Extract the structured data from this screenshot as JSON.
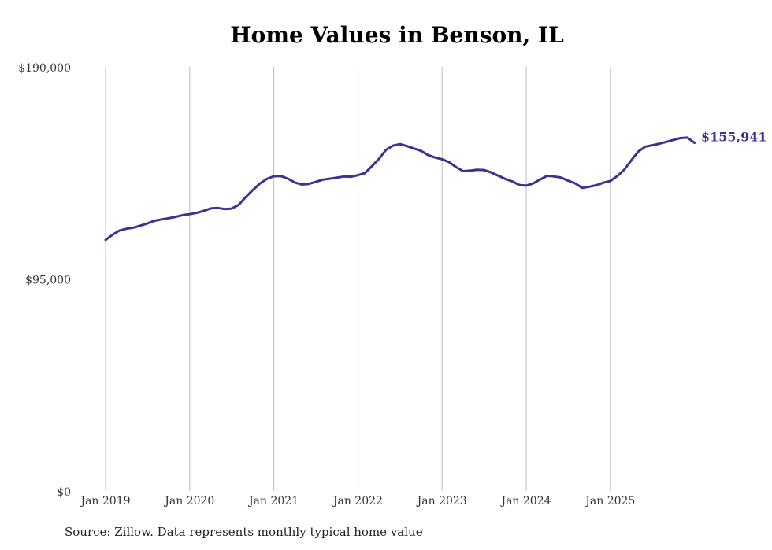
{
  "chart_data": {
    "type": "line",
    "title": "Home Values in Benson, IL",
    "xlabel": "",
    "ylabel": "",
    "ylim": [
      0,
      190000
    ],
    "yticks": [
      {
        "value": 0,
        "label": "$0"
      },
      {
        "value": 95000,
        "label": "$95,000"
      },
      {
        "value": 190000,
        "label": "$190,000"
      }
    ],
    "xticks": [
      {
        "year": 2019,
        "label": "Jan 2019"
      },
      {
        "year": 2020,
        "label": "Jan 2020"
      },
      {
        "year": 2021,
        "label": "Jan 2021"
      },
      {
        "year": 2022,
        "label": "Jan 2022"
      },
      {
        "year": 2023,
        "label": "Jan 2023"
      },
      {
        "year": 2024,
        "label": "Jan 2024"
      },
      {
        "year": 2025,
        "label": "Jan 2025"
      }
    ],
    "grid": "vertical",
    "color": "#3a3391",
    "end_label": "$155,941",
    "series": [
      {
        "name": "Typical home value",
        "start": "Jan 2019",
        "frequency": "monthly",
        "values": [
          112500,
          114800,
          116700,
          117500,
          118000,
          118900,
          119900,
          121100,
          121700,
          122200,
          122800,
          123600,
          124000,
          124600,
          125500,
          126600,
          126800,
          126300,
          126500,
          128200,
          131700,
          134800,
          137700,
          139800,
          141000,
          141100,
          139900,
          138200,
          137300,
          137600,
          138500,
          139500,
          139900,
          140400,
          140900,
          140800,
          141500,
          142400,
          145500,
          148800,
          152800,
          154700,
          155400,
          154500,
          153400,
          152400,
          150500,
          149400,
          148600,
          147300,
          145100,
          143300,
          143500,
          143900,
          143800,
          142700,
          141300,
          139800,
          138700,
          137100,
          136800,
          137800,
          139600,
          141200,
          140900,
          140400,
          139000,
          137800,
          135800,
          136300,
          137000,
          138100,
          138900,
          141100,
          144000,
          148200,
          152100,
          154300,
          154900,
          155600,
          156400,
          157300,
          158100,
          158300,
          155941
        ]
      }
    ]
  },
  "footer": {
    "source": "Source: Zillow. Data represents monthly typical home value"
  }
}
